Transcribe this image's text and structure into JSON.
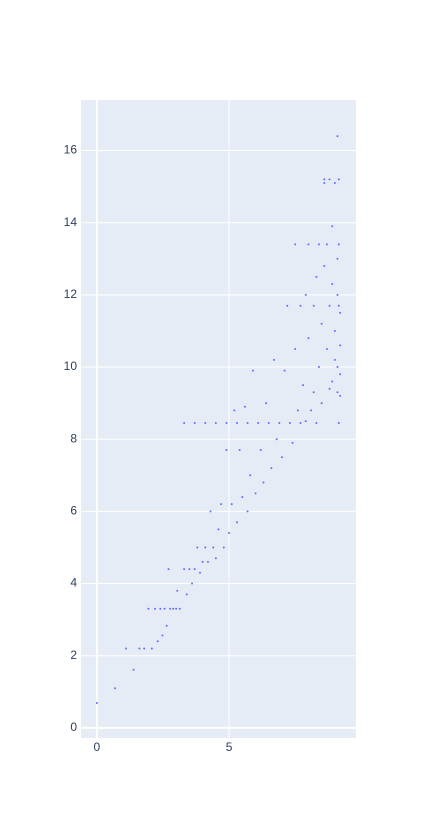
{
  "chart_data": {
    "type": "scatter",
    "color": "#636efa",
    "grid": true,
    "xlim": [
      -0.6,
      9.8
    ],
    "ylim": [
      -0.28,
      17.4
    ],
    "xticks": [
      0,
      5
    ],
    "yticks": [
      0,
      2,
      4,
      6,
      8,
      10,
      12,
      14,
      16
    ],
    "x": [
      0,
      0.69,
      1.1,
      1.39,
      1.61,
      1.79,
      1.95,
      2.08,
      2.2,
      2.3,
      2.4,
      2.48,
      2.56,
      2.64,
      2.71,
      2.77,
      2.89,
      3.0,
      3.04,
      3.14,
      3.3,
      3.3,
      3.4,
      3.5,
      3.6,
      3.7,
      3.7,
      3.8,
      3.9,
      4.0,
      4.1,
      4.1,
      4.2,
      4.3,
      4.4,
      4.5,
      4.5,
      4.6,
      4.7,
      4.8,
      4.9,
      4.9,
      5.0,
      5.1,
      5.2,
      5.3,
      5.3,
      5.4,
      5.5,
      5.6,
      5.7,
      5.7,
      5.8,
      5.9,
      6.0,
      6.1,
      6.2,
      6.3,
      6.4,
      6.5,
      6.6,
      6.7,
      6.8,
      6.9,
      7.0,
      7.1,
      7.2,
      7.3,
      7.4,
      7.5,
      7.5,
      7.6,
      7.7,
      7.7,
      7.8,
      7.9,
      7.9,
      8.0,
      8.0,
      8.1,
      8.2,
      8.2,
      8.3,
      8.3,
      8.4,
      8.4,
      8.5,
      8.5,
      8.6,
      8.6,
      8.6,
      8.7,
      8.7,
      8.8,
      8.8,
      8.8,
      8.9,
      8.9,
      8.9,
      9.0,
      9.0,
      9.0,
      9.1,
      9.1,
      9.1,
      9.1,
      9.2,
      9.2,
      9.2,
      9.2,
      9.15,
      9.15,
      9.15,
      9.15,
      9.1
    ],
    "y": [
      0.69,
      1.1,
      2.2,
      1.61,
      2.2,
      2.2,
      3.3,
      2.2,
      3.3,
      2.4,
      3.3,
      2.56,
      3.3,
      2.83,
      4.4,
      3.3,
      3.3,
      3.3,
      3.8,
      3.3,
      4.4,
      8.45,
      3.7,
      4.4,
      4.0,
      4.4,
      8.45,
      5.0,
      4.3,
      4.6,
      5.0,
      8.45,
      4.6,
      6.0,
      5.0,
      8.45,
      4.7,
      5.5,
      6.2,
      5.0,
      8.45,
      7.7,
      5.4,
      6.2,
      8.8,
      5.7,
      8.45,
      7.7,
      6.4,
      8.9,
      6.0,
      8.45,
      7.0,
      9.9,
      6.5,
      8.45,
      7.7,
      6.8,
      9.0,
      8.45,
      7.2,
      10.2,
      8.0,
      8.45,
      7.5,
      9.9,
      11.7,
      8.45,
      7.9,
      13.4,
      10.5,
      8.8,
      11.7,
      8.45,
      9.5,
      8.5,
      12.0,
      13.4,
      10.8,
      8.8,
      11.7,
      9.3,
      12.5,
      8.45,
      13.4,
      10.0,
      11.2,
      9.0,
      12.8,
      15.1,
      15.2,
      13.4,
      10.5,
      9.4,
      11.7,
      15.2,
      13.9,
      12.3,
      9.6,
      15.1,
      11.0,
      10.2,
      16.4,
      13.0,
      12.0,
      9.3,
      11.5,
      10.6,
      9.8,
      9.2,
      8.45,
      13.4,
      15.2,
      11.7,
      10.0
    ]
  }
}
